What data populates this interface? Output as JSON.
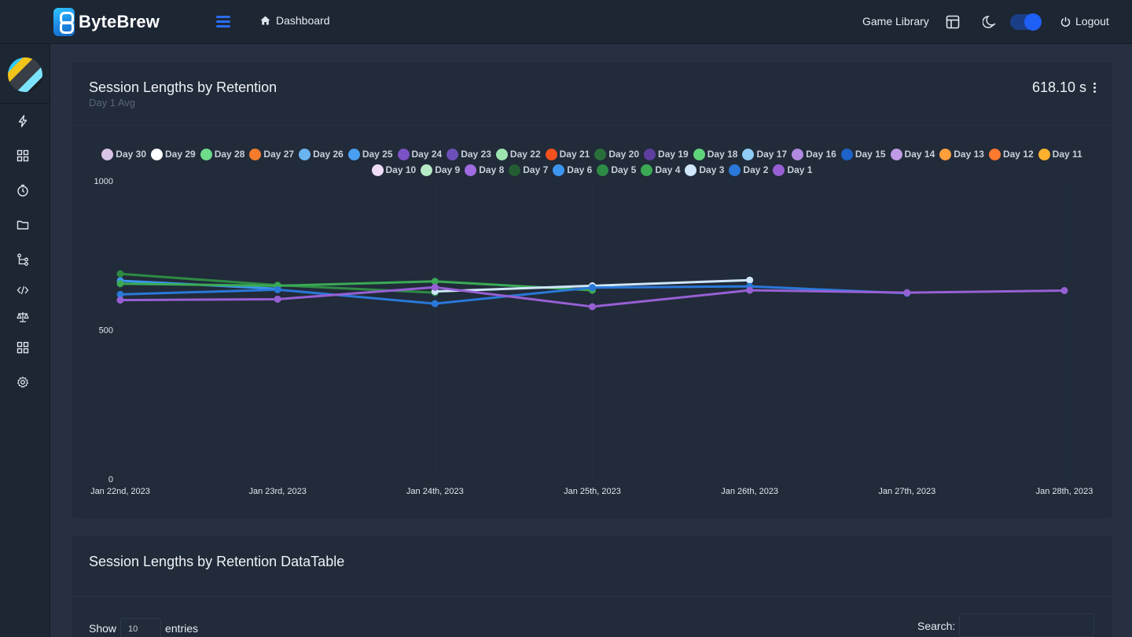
{
  "header": {
    "brand": "ByteBrew",
    "breadcrumb": "Dashboard",
    "game_library": "Game Library",
    "logout": "Logout",
    "theme_toggle_on": true
  },
  "sidebar": {
    "items": [
      {
        "icon": "lightning-icon"
      },
      {
        "icon": "grid-icon"
      },
      {
        "icon": "clock-icon"
      },
      {
        "icon": "folder-icon"
      },
      {
        "icon": "flow-icon"
      },
      {
        "icon": "code-icon"
      },
      {
        "icon": "scale-icon"
      },
      {
        "icon": "apps-icon"
      },
      {
        "icon": "settings-icon"
      }
    ]
  },
  "card1": {
    "title": "Session Lengths by Retention",
    "subtitle": "Day 1 Avg",
    "value": "618.10 s"
  },
  "card2": {
    "title": "Session Lengths by Retention DataTable",
    "show_label": "Show",
    "entries_value": "10",
    "entries_label": "entries",
    "search_label": "Search:"
  },
  "chart_data": {
    "type": "line",
    "x": [
      "Jan 22nd, 2023",
      "Jan 23rd, 2023",
      "Jan 24th, 2023",
      "Jan 25th, 2023",
      "Jan 26th, 2023",
      "Jan 27th, 2023",
      "Jan 28th, 2023"
    ],
    "ylim": [
      0,
      1000
    ],
    "yticks": [
      0,
      500,
      1000
    ],
    "grid": true,
    "legend_position": "top-center",
    "legend": [
      {
        "name": "Day 30",
        "color": "#d9c3e6"
      },
      {
        "name": "Day 29",
        "color": "#ffffff"
      },
      {
        "name": "Day 28",
        "color": "#6fdc8c"
      },
      {
        "name": "Day 27",
        "color": "#f57c2a"
      },
      {
        "name": "Day 26",
        "color": "#6ab4f2"
      },
      {
        "name": "Day 25",
        "color": "#4a9ff0"
      },
      {
        "name": "Day 24",
        "color": "#7c52c7"
      },
      {
        "name": "Day 23",
        "color": "#6c4fb8"
      },
      {
        "name": "Day 22",
        "color": "#9ee4b0"
      },
      {
        "name": "Day 21",
        "color": "#f4511e"
      },
      {
        "name": "Day 20",
        "color": "#2a6e3c"
      },
      {
        "name": "Day 19",
        "color": "#5e3f9f"
      },
      {
        "name": "Day 18",
        "color": "#5fd47c"
      },
      {
        "name": "Day 17",
        "color": "#8ecbf5"
      },
      {
        "name": "Day 16",
        "color": "#b08ae0"
      },
      {
        "name": "Day 15",
        "color": "#1e63c9"
      },
      {
        "name": "Day 14",
        "color": "#c09ae6"
      },
      {
        "name": "Day 13",
        "color": "#ff9e3d"
      },
      {
        "name": "Day 12",
        "color": "#ff7a2e"
      },
      {
        "name": "Day 11",
        "color": "#ffb12e"
      },
      {
        "name": "Day 10",
        "color": "#efdcf5"
      },
      {
        "name": "Day 9",
        "color": "#b7ebc6"
      },
      {
        "name": "Day 8",
        "color": "#a06ae0"
      },
      {
        "name": "Day 7",
        "color": "#245c33"
      },
      {
        "name": "Day 6",
        "color": "#3c95ee"
      },
      {
        "name": "Day 5",
        "color": "#2e8b45"
      },
      {
        "name": "Day 4",
        "color": "#3aaa55"
      },
      {
        "name": "Day 3",
        "color": "#cfe6fb"
      },
      {
        "name": "Day 2",
        "color": "#2a78d8"
      },
      {
        "name": "Day 1",
        "color": "#9660d4"
      }
    ],
    "series": [
      {
        "name": "Day 1",
        "color": "#9660d4",
        "values": [
          600,
          603,
          643,
          578,
          633,
          625,
          632
        ]
      },
      {
        "name": "Day 2",
        "color": "#2a78d8",
        "values": [
          619,
          635,
          588,
          642,
          646,
          623,
          null
        ]
      },
      {
        "name": "Day 3",
        "color": "#cfe6fb",
        "values": [
          null,
          null,
          629,
          648,
          667,
          null,
          null
        ]
      },
      {
        "name": "Day 4",
        "color": "#3aaa55",
        "values": [
          655,
          648,
          663,
          633,
          null,
          null,
          null
        ]
      },
      {
        "name": "Day 5",
        "color": "#2e8b45",
        "values": [
          688,
          650,
          625,
          null,
          null,
          null,
          null
        ]
      },
      {
        "name": "Day 6",
        "color": "#3c95ee",
        "values": [
          665,
          638,
          null,
          null,
          null,
          null,
          null
        ]
      }
    ]
  }
}
